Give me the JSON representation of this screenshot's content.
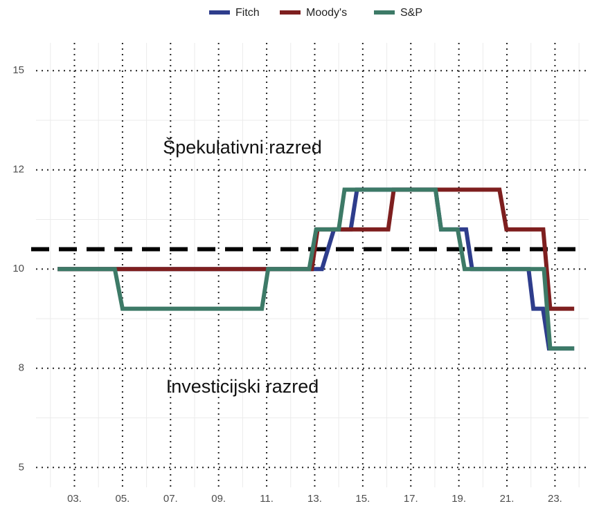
{
  "chart_data": {
    "type": "line",
    "legend_position": "top",
    "series": [
      {
        "name": "Fitch",
        "color": "#2e3d8c",
        "x": [
          2.3,
          13.3,
          13.8,
          14.5,
          14.76,
          18.03,
          18.26,
          19.3,
          19.55,
          21.9,
          22.1,
          22.5,
          22.75,
          23.8
        ],
        "values": [
          10,
          10,
          11,
          11,
          12,
          12,
          11,
          11,
          10,
          10,
          9,
          9,
          8,
          8
        ]
      },
      {
        "name": "Moody's",
        "color": "#7e1f1f",
        "x": [
          2.3,
          12.88,
          13.12,
          16.06,
          16.29,
          20.69,
          20.98,
          22.51,
          22.8,
          23.8
        ],
        "values": [
          10,
          10,
          11,
          11,
          12,
          12,
          11,
          11,
          9,
          9
        ]
      },
      {
        "name": "S&P",
        "color": "#3d7a67",
        "x": [
          2.3,
          4.68,
          5.0,
          10.8,
          11.06,
          12.77,
          13.06,
          14.0,
          14.24,
          18.03,
          18.26,
          18.95,
          19.24,
          22.54,
          22.8,
          23.8
        ],
        "values": [
          10,
          10,
          9,
          9,
          10,
          10,
          11,
          11,
          12,
          12,
          11,
          11,
          10,
          10,
          8,
          8
        ]
      }
    ],
    "reference_line": 10.5,
    "annotations": [
      "Špekulativni razred",
      "Investicijski razred"
    ],
    "xlim": [
      1.4,
      24.4
    ],
    "xticks": [
      {
        "value": 3,
        "label": "03."
      },
      {
        "value": 5,
        "label": "05."
      },
      {
        "value": 7,
        "label": "07."
      },
      {
        "value": 9,
        "label": "09."
      },
      {
        "value": 11,
        "label": "11."
      },
      {
        "value": 13,
        "label": "13."
      },
      {
        "value": 15,
        "label": "15."
      },
      {
        "value": 17,
        "label": "17."
      },
      {
        "value": 19,
        "label": "19."
      },
      {
        "value": 21,
        "label": "21."
      },
      {
        "value": 23,
        "label": "23."
      }
    ],
    "x_minor_ticks": [
      2,
      4,
      6,
      8,
      10,
      12,
      14,
      16,
      18,
      20,
      22,
      24
    ],
    "ylim": [
      4.5,
      15.7
    ],
    "yticks": [
      {
        "value": 5,
        "label": "5"
      },
      {
        "value": 7.5,
        "label": "8"
      },
      {
        "value": 10,
        "label": "10"
      },
      {
        "value": 12.5,
        "label": "12"
      },
      {
        "value": 15,
        "label": "15"
      }
    ],
    "y_minor_ticks": [
      6.25,
      8.75,
      11.25,
      13.75
    ],
    "grid": true
  }
}
